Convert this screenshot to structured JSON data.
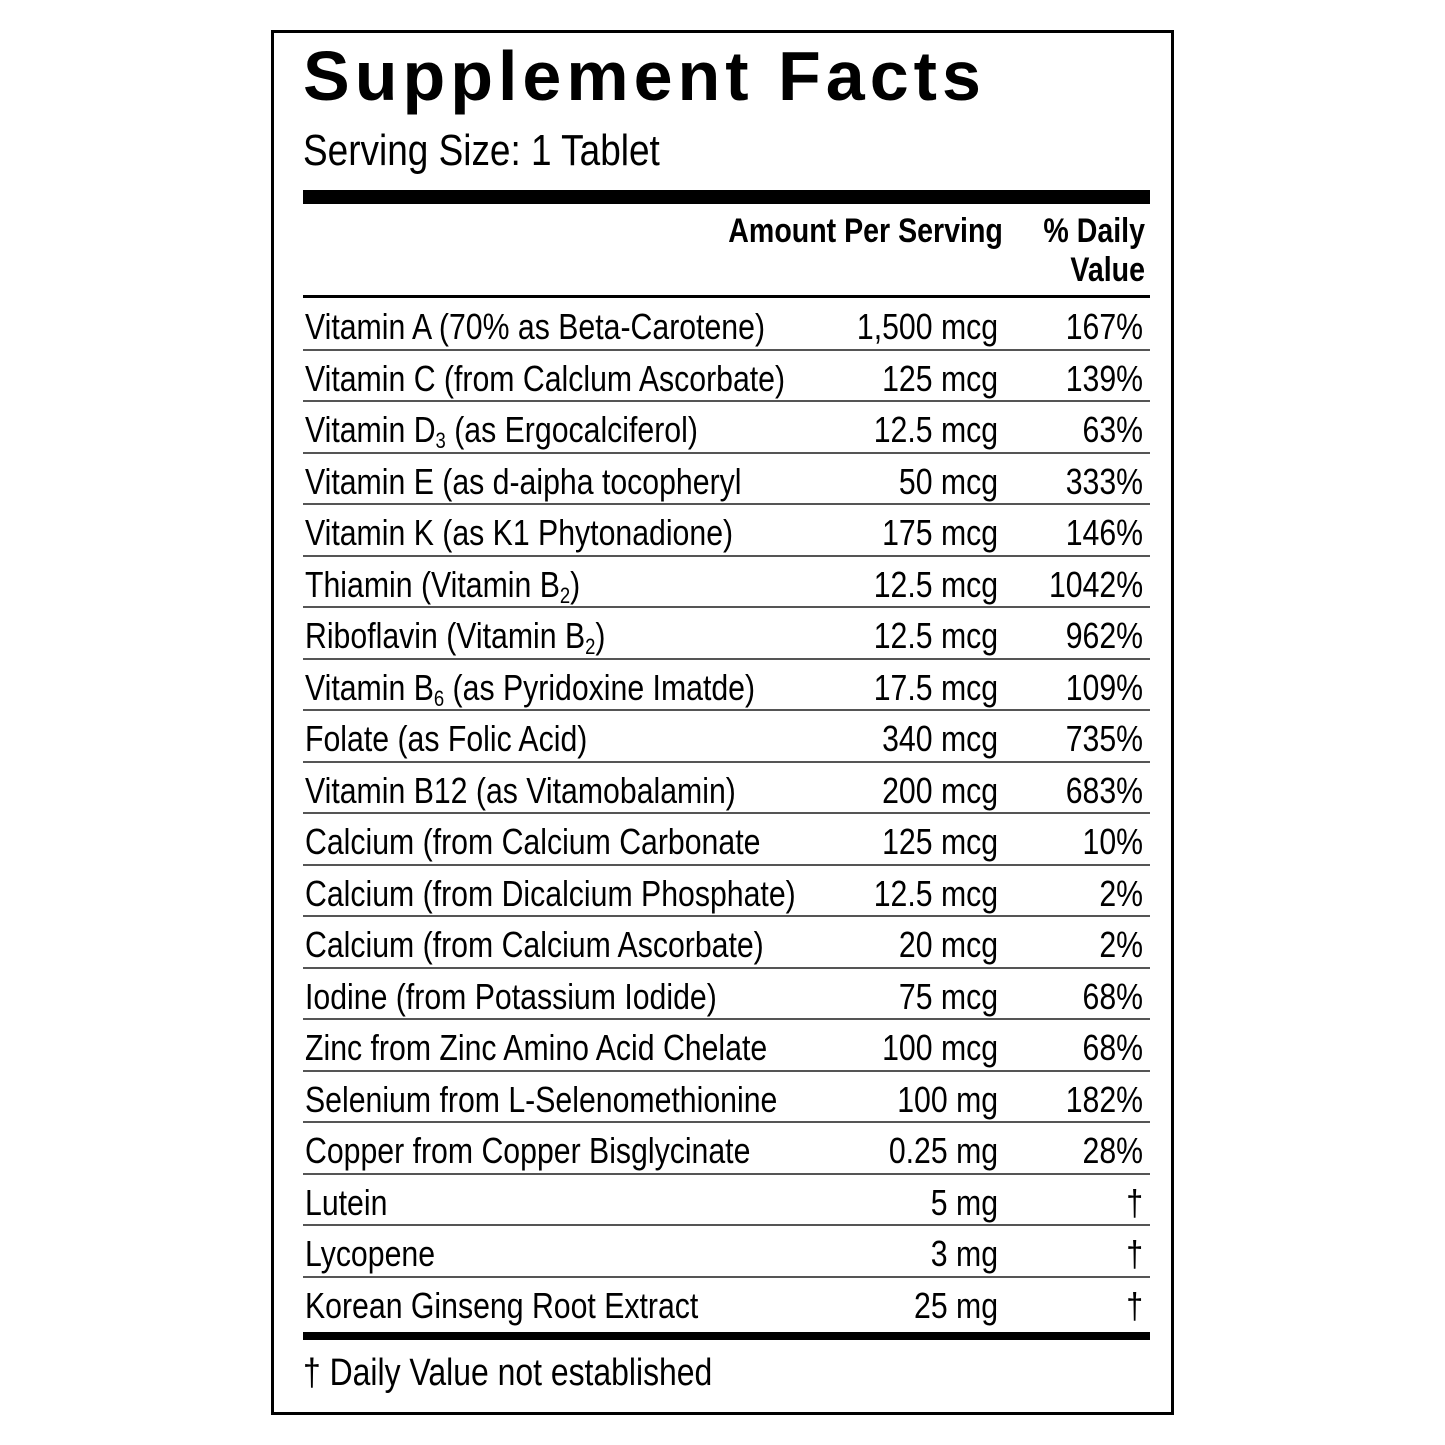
{
  "header": {
    "title": "Supplement Facts",
    "serving_size": "Serving Size: 1 Tablet"
  },
  "table": {
    "columns": [
      "Amount Per Serving",
      "% Daily Value"
    ],
    "rows": [
      [
        "Vitamin A (70% as Beta-Carotene)",
        "1,500 mcg",
        "167%"
      ],
      [
        "Vitamin C (from Calclum Ascorbate)",
        "125 mcg",
        "139%"
      ],
      [
        {
          "text": "Vitamin D",
          "sub": "3",
          "after": " (as Ergocalciferol)"
        },
        "12.5 mcg",
        "63%"
      ],
      [
        "Vitamin E (as d-aipha tocopheryl",
        "50 mcg",
        "333%"
      ],
      [
        "Vitamin K (as K1 Phytonadione)",
        "175 mcg",
        "146%"
      ],
      [
        {
          "text": "Thiamin (Vitamin B",
          "sub": "2",
          "after": ")"
        },
        "12.5 mcg",
        "1042%"
      ],
      [
        {
          "text": "Riboflavin (Vitamin B",
          "sub": "2",
          "after": ")"
        },
        "12.5 mcg",
        "962%"
      ],
      [
        {
          "text": "Vitamin B",
          "sub": "6",
          "after": " (as Pyridoxine Imatde)"
        },
        "17.5 mcg",
        "109%"
      ],
      [
        "Folate (as Folic Acid)",
        "340 mcg",
        "735%"
      ],
      [
        "Vitamin B12 (as Vitamobalamin)",
        "200 mcg",
        "683%"
      ],
      [
        "Calcium (from Calcium Carbonate",
        "125 mcg",
        "10%"
      ],
      [
        "Calcium (from Dicalcium Phosphate)",
        "12.5 mcg",
        "2%"
      ],
      [
        "Calcium (from Calcium Ascorbate)",
        "20 mcg",
        "2%"
      ],
      [
        "Iodine (from Potassium Iodide)",
        "75 mcg",
        "68%"
      ],
      [
        "Zinc from Zinc Amino Acid Chelate",
        "100 mcg",
        "68%"
      ],
      [
        "Selenium from L-Selenomethionine",
        "100 mg",
        "182%"
      ],
      [
        "Copper from Copper Bisglycinate",
        "0.25 mg",
        "28%"
      ],
      [
        "Lutein",
        "5 mg",
        "†"
      ],
      [
        "Lycopene",
        "3 mg",
        "†"
      ],
      [
        "Korean Ginseng Root Extract",
        "25 mg",
        "†"
      ]
    ]
  },
  "footnote": "† Daily Value not established"
}
